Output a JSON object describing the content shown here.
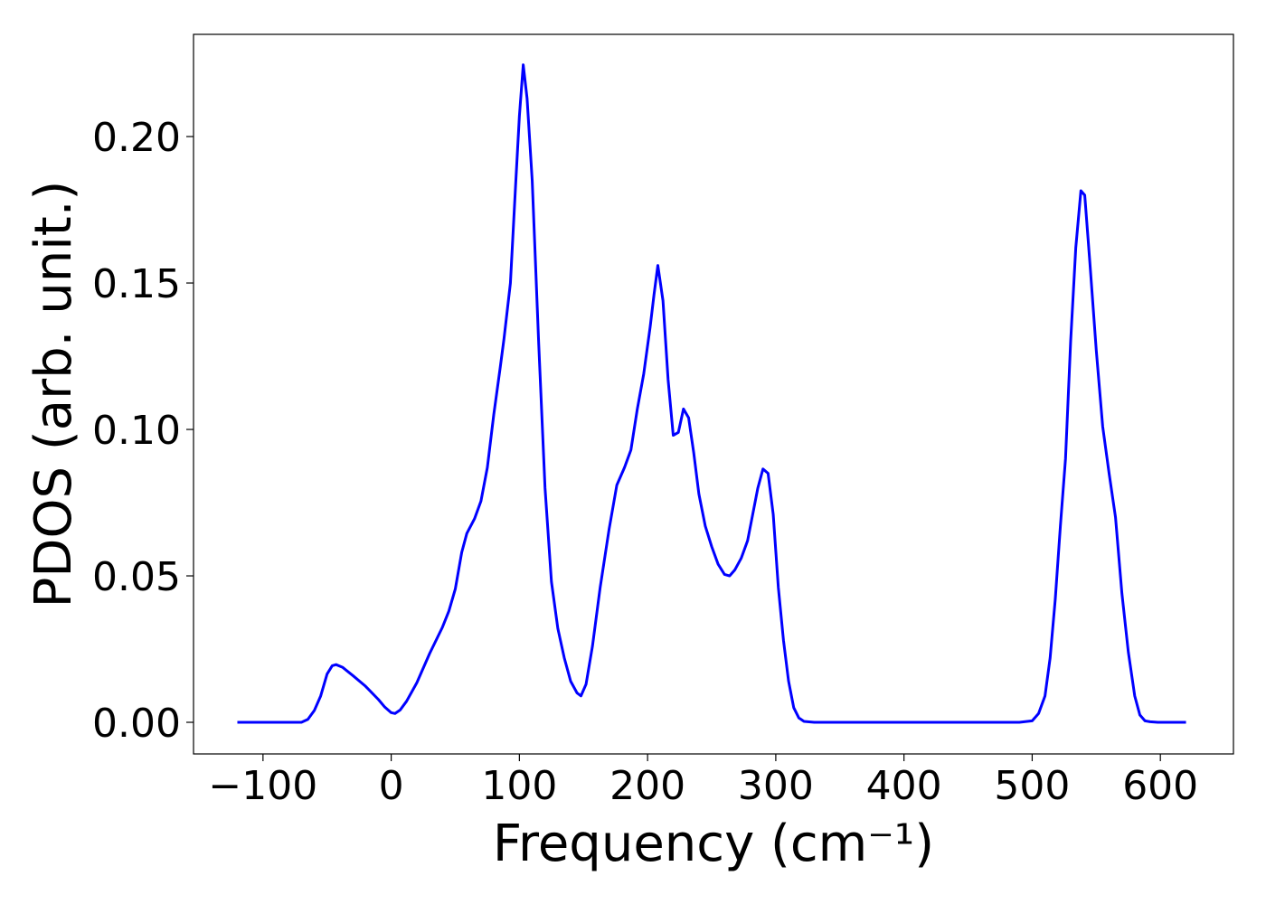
{
  "chart_data": {
    "type": "line",
    "xlabel": "Frequency (cm⁻¹)",
    "ylabel": "PDOS (arb. unit.)",
    "xlim": [
      -154.2,
      657
    ],
    "ylim": [
      -0.0108,
      0.2349
    ],
    "xticks": [
      {
        "value": -100,
        "label": "−100"
      },
      0,
      100,
      200,
      300,
      400,
      500,
      600
    ],
    "yticks": [
      {
        "value": 0,
        "label": "0.00"
      },
      {
        "value": 0.05,
        "label": "0.05"
      },
      {
        "value": 0.1,
        "label": "0.10"
      },
      {
        "value": 0.15,
        "label": "0.15"
      },
      {
        "value": 0.2,
        "label": "0.20"
      }
    ],
    "grid": false,
    "series": [
      {
        "color": "#0000ff",
        "x": [
          -120,
          -70,
          -65,
          -60,
          -55,
          -50,
          -46,
          -43,
          -38,
          -30,
          -20,
          -10,
          -5,
          0,
          3,
          7,
          12,
          20,
          30,
          40,
          45,
          50,
          55,
          59,
          65,
          70,
          75,
          80,
          85,
          88,
          93,
          97,
          100,
          103,
          106,
          110,
          115,
          120,
          125,
          130,
          135,
          140,
          145,
          148,
          152,
          157,
          163,
          170,
          176,
          182,
          187,
          192,
          197,
          202,
          205,
          208,
          212,
          216,
          220,
          224,
          228,
          232,
          236,
          240,
          245,
          250,
          255,
          260,
          264,
          268,
          273,
          278,
          282,
          286,
          290,
          294,
          298,
          302,
          306,
          310,
          314,
          318,
          322,
          330,
          490,
          500,
          505,
          510,
          514,
          518,
          522,
          526,
          530,
          534,
          538,
          541,
          545,
          550,
          555,
          560,
          565,
          570,
          575,
          580,
          584,
          588,
          592,
          598,
          620
        ],
        "values": [
          0,
          0,
          0.001,
          0.004,
          0.009,
          0.0165,
          0.0193,
          0.0197,
          0.0188,
          0.016,
          0.0123,
          0.0078,
          0.0052,
          0.0033,
          0.003,
          0.0042,
          0.0072,
          0.0135,
          0.0235,
          0.0325,
          0.038,
          0.0455,
          0.058,
          0.0645,
          0.0695,
          0.0755,
          0.087,
          0.105,
          0.121,
          0.131,
          0.15,
          0.183,
          0.207,
          0.2245,
          0.213,
          0.185,
          0.13,
          0.08,
          0.048,
          0.032,
          0.022,
          0.014,
          0.01,
          0.009,
          0.013,
          0.026,
          0.046,
          0.066,
          0.081,
          0.087,
          0.093,
          0.107,
          0.119,
          0.135,
          0.146,
          0.156,
          0.144,
          0.117,
          0.098,
          0.099,
          0.107,
          0.104,
          0.092,
          0.078,
          0.067,
          0.06,
          0.054,
          0.0505,
          0.05,
          0.052,
          0.056,
          0.062,
          0.071,
          0.08,
          0.0865,
          0.085,
          0.071,
          0.046,
          0.028,
          0.014,
          0.005,
          0.0015,
          0.0003,
          0,
          0,
          0.0005,
          0.003,
          0.009,
          0.022,
          0.042,
          0.067,
          0.09,
          0.13,
          0.162,
          0.1815,
          0.18,
          0.157,
          0.127,
          0.101,
          0.085,
          0.07,
          0.044,
          0.024,
          0.009,
          0.0025,
          0.0005,
          0.0002,
          0,
          0
        ]
      }
    ]
  }
}
